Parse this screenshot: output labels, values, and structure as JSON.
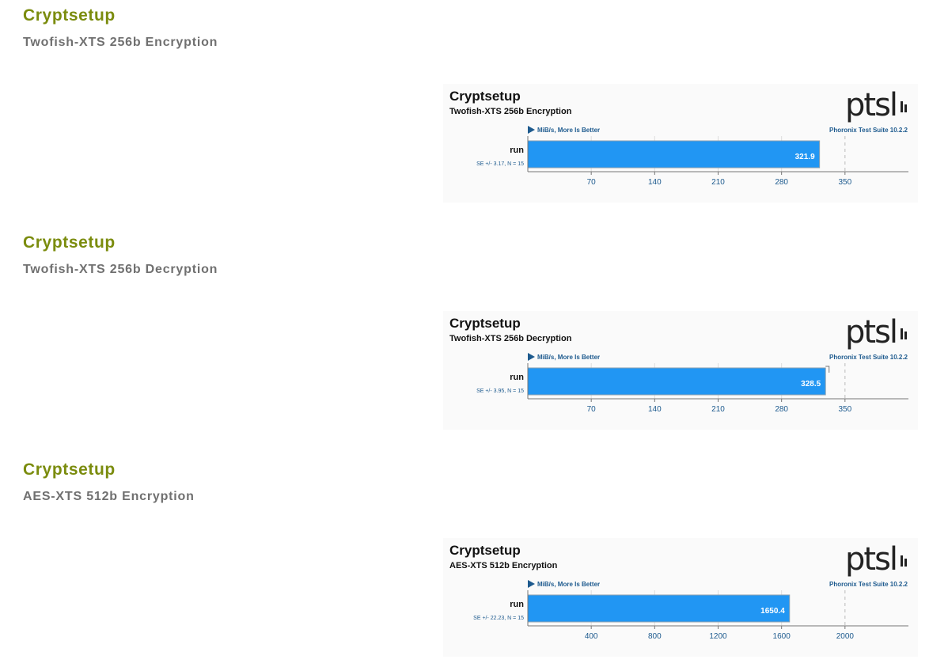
{
  "sections": [
    {
      "title": "Cryptsetup",
      "subtitle": "Twofish-XTS 256b Encryption"
    },
    {
      "title": "Cryptsetup",
      "subtitle": "Twofish-XTS 256b Decryption"
    },
    {
      "title": "Cryptsetup",
      "subtitle": "AES-XTS 512b Encryption"
    }
  ],
  "logo_text": "ptsl",
  "colors": {
    "bar": "#2196f3",
    "section_title": "#7b8c0e",
    "section_sub": "#707070",
    "axis_text": "#1d5a8e"
  },
  "chart_data": [
    {
      "type": "bar",
      "orientation": "horizontal",
      "title": "Cryptsetup",
      "subtitle": "Twofish-XTS 256b Encryption",
      "unit_note": "MiB/s, More Is Better",
      "suite": "Phoronix Test Suite 10.2.2",
      "categories": [
        "run"
      ],
      "values": [
        321.9
      ],
      "value_labels": [
        "321.9"
      ],
      "error_notes": [
        "SE +/- 3.17, N = 15"
      ],
      "xticks": [
        70,
        140,
        210,
        280,
        350
      ],
      "xlim": [
        0,
        420
      ],
      "grid": true
    },
    {
      "type": "bar",
      "orientation": "horizontal",
      "title": "Cryptsetup",
      "subtitle": "Twofish-XTS 256b Decryption",
      "unit_note": "MiB/s, More Is Better",
      "suite": "Phoronix Test Suite 10.2.2",
      "categories": [
        "run"
      ],
      "values": [
        328.5
      ],
      "value_labels": [
        "328.5"
      ],
      "error_notes": [
        "SE +/- 3.95, N = 15"
      ],
      "error_values": [
        3.95
      ],
      "xticks": [
        70,
        140,
        210,
        280,
        350
      ],
      "xlim": [
        0,
        420
      ],
      "grid": true
    },
    {
      "type": "bar",
      "orientation": "horizontal",
      "title": "Cryptsetup",
      "subtitle": "AES-XTS 512b Encryption",
      "unit_note": "MiB/s, More Is Better",
      "suite": "Phoronix Test Suite 10.2.2",
      "categories": [
        "run"
      ],
      "values": [
        1650.4
      ],
      "value_labels": [
        "1650.4"
      ],
      "error_notes": [
        "SE +/- 22.23, N = 15"
      ],
      "xticks": [
        400,
        800,
        1200,
        1600,
        2000
      ],
      "xlim": [
        0,
        2400
      ],
      "grid": true
    }
  ]
}
